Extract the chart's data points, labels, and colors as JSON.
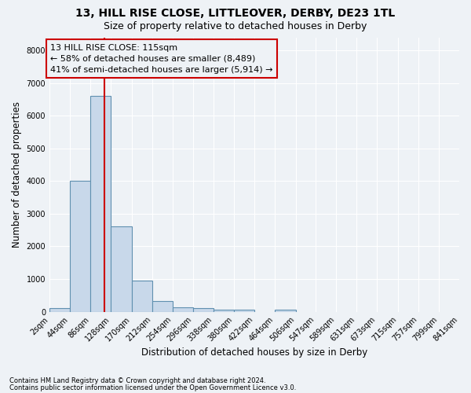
{
  "title1": "13, HILL RISE CLOSE, LITTLEOVER, DERBY, DE23 1TL",
  "title2": "Size of property relative to detached houses in Derby",
  "xlabel": "Distribution of detached houses by size in Derby",
  "ylabel": "Number of detached properties",
  "footnote1": "Contains HM Land Registry data © Crown copyright and database right 2024.",
  "footnote2": "Contains public sector information licensed under the Open Government Licence v3.0.",
  "property_label": "13 HILL RISE CLOSE: 115sqm",
  "annotation1": "← 58% of detached houses are smaller (8,489)",
  "annotation2": "41% of semi-detached houses are larger (5,914) →",
  "property_size": 115,
  "bar_color": "#c8d8ea",
  "bar_edge_color": "#6090b0",
  "vline_color": "#cc0000",
  "annotation_box_edge": "#cc0000",
  "bin_edges": [
    2,
    44,
    86,
    128,
    170,
    212,
    254,
    296,
    338,
    380,
    422,
    464,
    506,
    547,
    589,
    631,
    673,
    715,
    757,
    799,
    841
  ],
  "bar_heights": [
    100,
    4000,
    6600,
    2620,
    950,
    320,
    140,
    100,
    70,
    70,
    0,
    60,
    0,
    0,
    0,
    0,
    0,
    0,
    0,
    0
  ],
  "ylim": [
    0,
    8400
  ],
  "yticks": [
    0,
    1000,
    2000,
    3000,
    4000,
    5000,
    6000,
    7000,
    8000
  ],
  "background_color": "#eef2f6",
  "grid_color": "#ffffff",
  "title1_fontsize": 10,
  "title2_fontsize": 9,
  "annotation_fontsize": 8,
  "tick_fontsize": 7,
  "label_fontsize": 8.5,
  "footnote_fontsize": 6
}
